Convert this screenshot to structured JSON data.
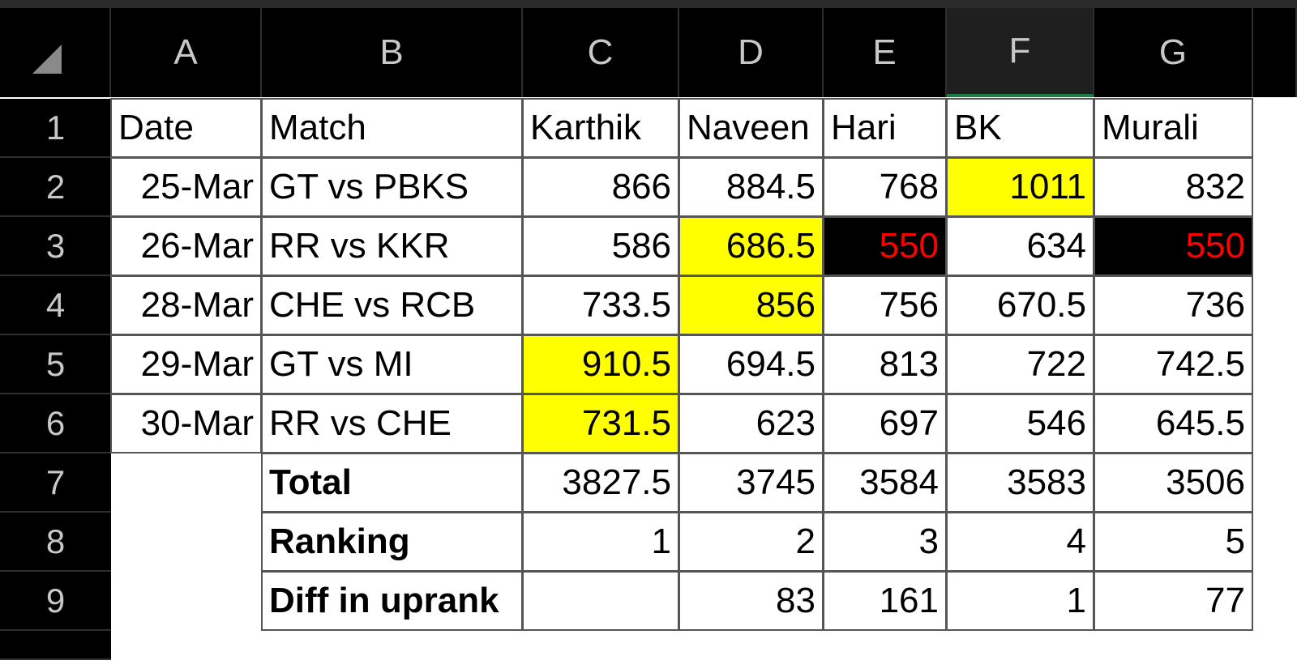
{
  "column_headers": [
    "A",
    "B",
    "C",
    "D",
    "E",
    "F",
    "G"
  ],
  "row_headers": [
    "1",
    "2",
    "3",
    "4",
    "5",
    "6",
    "7",
    "8",
    "9"
  ],
  "active_column": "F",
  "colors": {
    "highlight_yellow": "#ffff00",
    "highlight_black": "#000000",
    "red_text": "#ff0000",
    "header_bg": "#000000",
    "active_col_underline": "#1e7a46"
  },
  "header_row": {
    "date": "Date",
    "match": "Match",
    "players": [
      "Karthik",
      "Naveen",
      "Hari",
      "BK",
      "Murali"
    ]
  },
  "matches": [
    {
      "date": "25-Mar",
      "match": "GT vs PBKS",
      "scores": [
        "866",
        "884.5",
        "768",
        "1011",
        "832"
      ]
    },
    {
      "date": "26-Mar",
      "match": "RR vs KKR",
      "scores": [
        "586",
        "686.5",
        "550",
        "634",
        "550"
      ]
    },
    {
      "date": "28-Mar",
      "match": "CHE vs RCB",
      "scores": [
        "733.5",
        "856",
        "756",
        "670.5",
        "736"
      ]
    },
    {
      "date": "29-Mar",
      "match": "GT vs MI",
      "scores": [
        "910.5",
        "694.5",
        "813",
        "722",
        "742.5"
      ]
    },
    {
      "date": "30-Mar",
      "match": "RR vs CHE",
      "scores": [
        "731.5",
        "623",
        "697",
        "546",
        "645.5"
      ]
    }
  ],
  "summary": {
    "total": {
      "label": "Total",
      "values": [
        "3827.5",
        "3745",
        "3584",
        "3583",
        "3506"
      ]
    },
    "ranking": {
      "label": "Ranking",
      "values": [
        "1",
        "2",
        "3",
        "4",
        "5"
      ]
    },
    "diff": {
      "label": "Diff in uprank",
      "values": [
        "",
        "83",
        "161",
        "1",
        "77"
      ]
    }
  }
}
